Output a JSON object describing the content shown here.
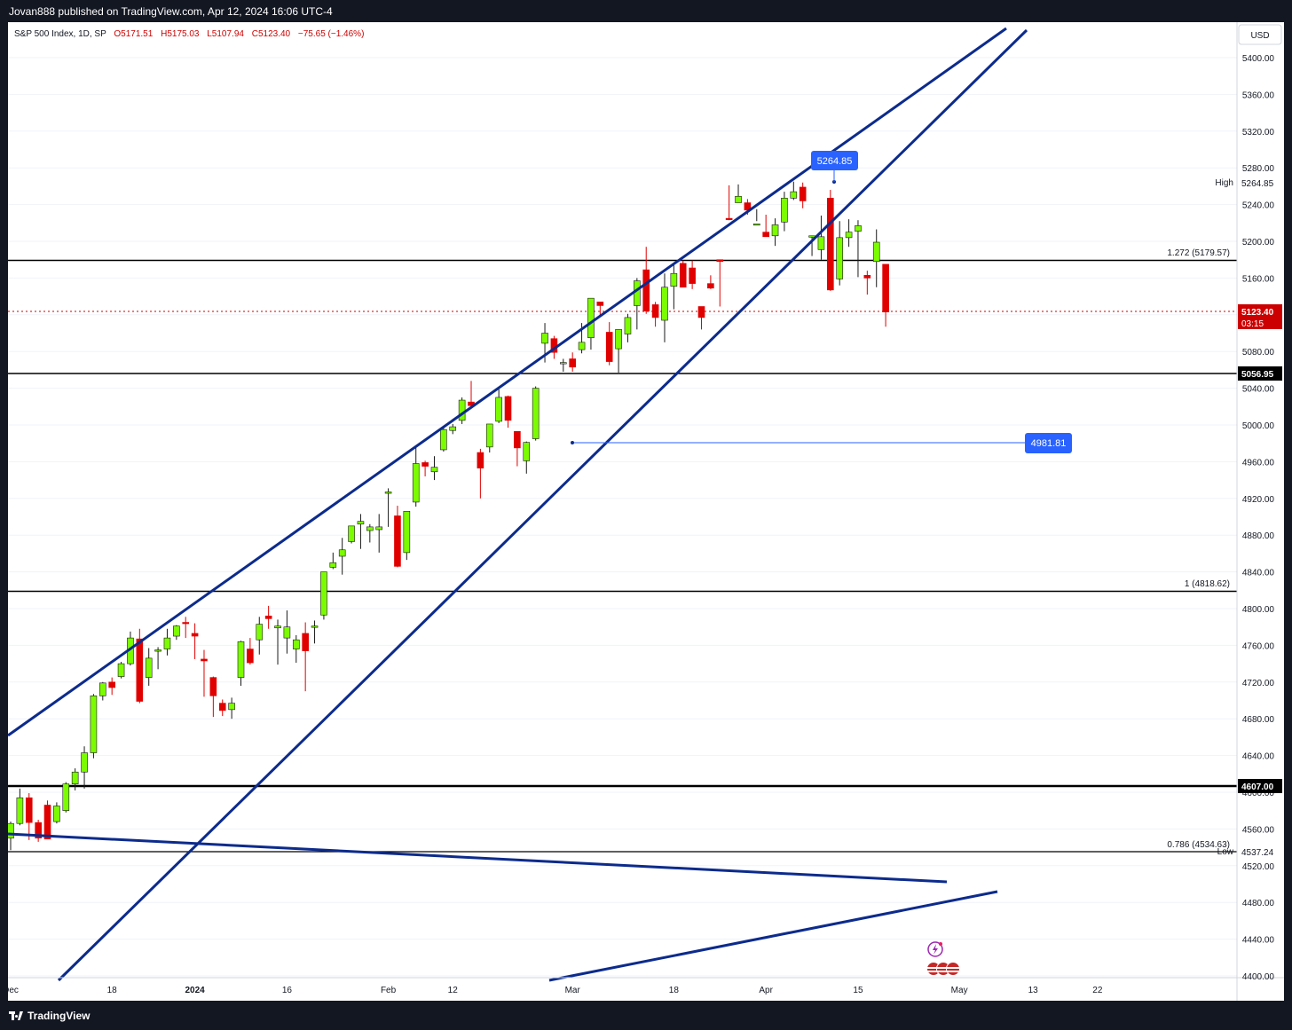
{
  "header": {
    "published": "Jovan888 published on TradingView.com, Apr 12, 2024 16:06 UTC-4"
  },
  "footer": {
    "brand": "TradingView"
  },
  "legend": {
    "symbol": "S&P 500 Index, 1D, SP",
    "open": "O5171.51",
    "high": "H5175.03",
    "low": "L5107.94",
    "close": "C5123.40",
    "change": "−75.65 (−1.46%)"
  },
  "price_scale": {
    "currency": "USD",
    "high_label": "High",
    "high_value": "5264.85",
    "low_label": "Low",
    "low_value": "4537.24",
    "last_price": "5123.40",
    "countdown": "03:15",
    "level_5056": "5056.95",
    "level_4607": "4607.00"
  },
  "annotations": {
    "fib_1272": "1.272 (5179.57)",
    "fib_1": "1 (4818.62)",
    "fib_0786": "0.786 (4534.63)",
    "high_callout": "5264.85",
    "support_callout": "4981.81"
  },
  "colors": {
    "up": "#7cfc00",
    "down": "#e00000",
    "trendline": "#0c2b8c",
    "callout": "#2962ff",
    "last_price": "#cc0000"
  },
  "chart_data": {
    "type": "candlestick",
    "title": "S&P 500 Index, 1D, SP",
    "ylim": [
      4397,
      5440
    ],
    "yticks": [
      4400,
      4440,
      4480,
      4520,
      4560,
      4600,
      4640,
      4680,
      4720,
      4760,
      4800,
      4840,
      4880,
      4920,
      4960,
      5000,
      5040,
      5080,
      5120,
      5160,
      5200,
      5240,
      5280,
      5320,
      5360,
      5400
    ],
    "xticks": [
      {
        "label": "Dec",
        "t": 1
      },
      {
        "label": "18",
        "t": 12
      },
      {
        "label": "2024",
        "t": 21,
        "bold": true
      },
      {
        "label": "16",
        "t": 31
      },
      {
        "label": "Feb",
        "t": 42
      },
      {
        "label": "12",
        "t": 49
      },
      {
        "label": "Mar",
        "t": 62
      },
      {
        "label": "18",
        "t": 73
      },
      {
        "label": "Apr",
        "t": 83
      },
      {
        "label": "15",
        "t": 93
      },
      {
        "label": "May",
        "t": 104
      },
      {
        "label": "13",
        "t": 112
      },
      {
        "label": "22",
        "t": 119
      }
    ],
    "candles": [
      [
        4567,
        4571,
        4548,
        4550
      ],
      [
        4550,
        4568,
        4537,
        4566
      ],
      [
        4566,
        4604,
        4564,
        4594
      ],
      [
        4594,
        4599,
        4548,
        4567
      ],
      [
        4567,
        4570,
        4546,
        4550
      ],
      [
        4586,
        4591,
        4553,
        4549
      ],
      [
        4568,
        4589,
        4566,
        4585
      ],
      [
        4580,
        4611,
        4578,
        4609
      ],
      [
        4609,
        4626,
        4602,
        4622
      ],
      [
        4622,
        4650,
        4604,
        4643
      ],
      [
        4643,
        4707,
        4637,
        4705
      ],
      [
        4705,
        4720,
        4700,
        4719
      ],
      [
        4720,
        4725,
        4706,
        4714
      ],
      [
        4726,
        4742,
        4724,
        4740
      ],
      [
        4740,
        4775,
        4738,
        4768
      ],
      [
        4767,
        4778,
        4697,
        4699
      ],
      [
        4725,
        4757,
        4716,
        4746
      ],
      [
        4755,
        4758,
        4734,
        4755
      ],
      [
        4756,
        4778,
        4749,
        4768
      ],
      [
        4770,
        4782,
        4766,
        4781
      ],
      [
        4785,
        4791,
        4768,
        4784
      ],
      [
        4773,
        4784,
        4745,
        4770
      ],
      [
        4745,
        4755,
        4704,
        4743
      ],
      [
        4725,
        4726,
        4682,
        4705
      ],
      [
        4697,
        4701,
        4683,
        4689
      ],
      [
        4690,
        4703,
        4680,
        4697
      ],
      [
        4725,
        4765,
        4716,
        4764
      ],
      [
        4756,
        4768,
        4739,
        4741
      ],
      [
        4766,
        4791,
        4750,
        4783
      ],
      [
        4792,
        4803,
        4778,
        4789
      ],
      [
        4779,
        4788,
        4739,
        4781
      ],
      [
        4768,
        4798,
        4751,
        4780
      ],
      [
        4756,
        4771,
        4741,
        4766
      ],
      [
        4773,
        4785,
        4710,
        4754
      ],
      [
        4780,
        4787,
        4762,
        4781
      ],
      [
        4793,
        4840,
        4788,
        4840
      ],
      [
        4845,
        4861,
        4843,
        4850
      ],
      [
        4857,
        4877,
        4837,
        4864
      ],
      [
        4873,
        4889,
        4871,
        4890
      ],
      [
        4892,
        4903,
        4865,
        4895
      ],
      [
        4885,
        4892,
        4872,
        4889
      ],
      [
        4886,
        4903,
        4861,
        4889
      ],
      [
        4926,
        4931,
        4889,
        4927
      ],
      [
        4901,
        4912,
        4845,
        4846
      ],
      [
        4861,
        4906,
        4853,
        4906
      ],
      [
        4916,
        4976,
        4911,
        4958
      ],
      [
        4959,
        4961,
        4944,
        4955
      ],
      [
        4949,
        4966,
        4940,
        4954
      ],
      [
        4973,
        4999,
        4971,
        4995
      ],
      [
        4994,
        5001,
        4990,
        4998
      ],
      [
        5005,
        5030,
        5001,
        5027
      ],
      [
        5025,
        5048,
        5018,
        5021
      ],
      [
        4970,
        4974,
        4920,
        4953
      ],
      [
        4976,
        5001,
        4970,
        5001
      ],
      [
        5004,
        5039,
        5002,
        5030
      ],
      [
        5031,
        5032,
        4997,
        5005
      ],
      [
        4993,
        4987,
        4955,
        4975
      ],
      [
        4961,
        4982,
        4947,
        4981
      ],
      [
        4985,
        5042,
        4983,
        5040
      ],
      [
        5089,
        5111,
        5068,
        5100
      ],
      [
        5094,
        5097,
        5072,
        5079
      ],
      [
        5068,
        5072,
        5058,
        5068
      ],
      [
        5072,
        5079,
        5058,
        5063
      ],
      [
        5082,
        5111,
        5078,
        5090
      ],
      [
        5095,
        5137,
        5082,
        5138
      ],
      [
        5134,
        5134,
        5118,
        5130
      ],
      [
        5101,
        5112,
        5065,
        5069
      ],
      [
        5083,
        5104,
        5057,
        5104
      ],
      [
        5099,
        5121,
        5090,
        5117
      ],
      [
        5130,
        5160,
        5104,
        5157
      ],
      [
        5169,
        5194,
        5121,
        5124
      ],
      [
        5131,
        5134,
        5107,
        5117
      ],
      [
        5114,
        5165,
        5090,
        5150
      ],
      [
        5151,
        5176,
        5126,
        5165
      ],
      [
        5176,
        5179,
        5151,
        5150
      ],
      [
        5171,
        5179,
        5148,
        5154
      ],
      [
        5129,
        5129,
        5104,
        5117
      ],
      [
        5154,
        5163,
        5148,
        5149
      ],
      [
        5180,
        5180,
        5129,
        5178
      ],
      [
        5225,
        5261,
        5223,
        5224
      ],
      [
        5242,
        5262,
        5249,
        5249
      ],
      [
        5242,
        5246,
        5229,
        5234
      ],
      [
        5219,
        5235,
        5222,
        5219
      ],
      [
        5210,
        5229,
        5205,
        5205
      ],
      [
        5206,
        5225,
        5195,
        5218
      ],
      [
        5221,
        5254,
        5211,
        5247
      ],
      [
        5247,
        5265,
        5245,
        5254
      ],
      [
        5259,
        5264,
        5236,
        5244
      ],
      [
        5205,
        5206,
        5184,
        5206
      ],
      [
        5191,
        5228,
        5180,
        5205
      ],
      [
        5247,
        5256,
        5146,
        5147
      ],
      [
        5159,
        5222,
        5152,
        5204
      ],
      [
        5204,
        5224,
        5194,
        5210
      ],
      [
        5211,
        5223,
        5161,
        5217
      ],
      [
        5163,
        5168,
        5142,
        5160
      ],
      [
        5178,
        5213,
        5150,
        5199
      ],
      [
        5175,
        5175,
        5107,
        5123
      ]
    ],
    "horizontal_levels": [
      5179.57,
      5056.95,
      4818.62,
      4607.0,
      4534.63
    ],
    "last_price": 5123.4,
    "period_high": 5264.85,
    "period_low": 4537.24
  }
}
